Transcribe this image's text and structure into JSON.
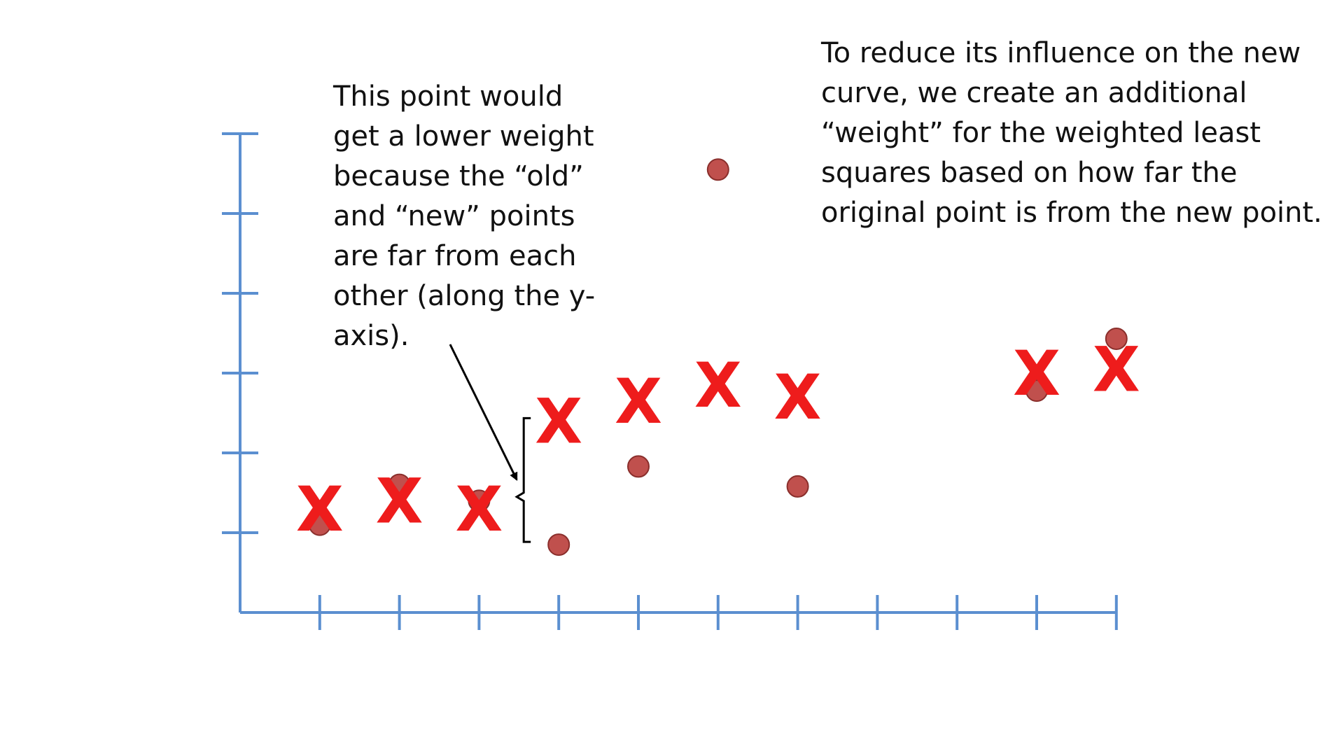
{
  "annotations": {
    "left_note": [
      "This point would",
      "get a lower weight",
      "because the “old”",
      "and “new” points",
      "are far from each",
      "other (along the y-",
      "axis)."
    ],
    "right_note": [
      "To reduce its influence on the new",
      "curve, we create an additional",
      "“weight” for the weighted least",
      "squares based on how far the",
      "original point is from the new point."
    ],
    "x_marker_glyph": "X"
  },
  "chart_data": {
    "type": "scatter",
    "title": "",
    "xlabel": "",
    "ylabel": "",
    "xlim": [
      0,
      11
    ],
    "ylim": [
      0,
      6
    ],
    "x_ticks": [
      1,
      2,
      3,
      4,
      5,
      6,
      7,
      8,
      9,
      10,
      11
    ],
    "y_ticks": [
      1,
      2,
      3,
      4,
      5,
      6
    ],
    "grid": false,
    "legend": "none",
    "axis_color": "#5b8fd0",
    "series": [
      {
        "marker": "circle",
        "color": "#c0504d",
        "points": [
          [
            1,
            1.1
          ],
          [
            2,
            1.6
          ],
          [
            3,
            1.4
          ],
          [
            4,
            0.85
          ],
          [
            5,
            1.83
          ],
          [
            6,
            5.55
          ],
          [
            7,
            1.58
          ],
          [
            10,
            2.78
          ],
          [
            11,
            3.43
          ]
        ]
      },
      {
        "marker": "x",
        "color": "#ee1c1c",
        "points": [
          [
            1,
            1.3
          ],
          [
            2,
            1.4
          ],
          [
            3,
            1.3
          ],
          [
            4,
            2.4
          ],
          [
            5,
            2.65
          ],
          [
            6,
            2.85
          ],
          [
            7,
            2.7
          ],
          [
            10,
            3.0
          ],
          [
            11,
            3.05
          ]
        ]
      }
    ],
    "bracket": {
      "x": 4,
      "y_range": [
        0.85,
        2.4
      ]
    },
    "arrow": {
      "target": [
        4,
        1.7
      ]
    }
  }
}
